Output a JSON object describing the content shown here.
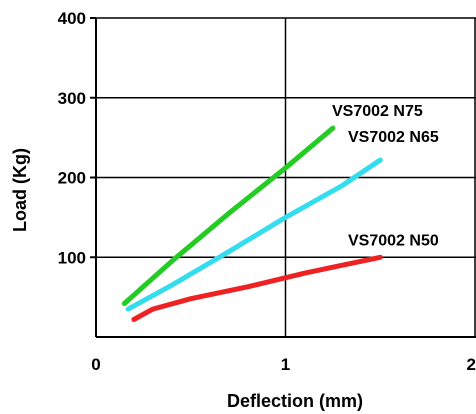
{
  "chart_data": {
    "type": "line",
    "title": "",
    "xlabel": "Deflection (mm)",
    "ylabel": "Load (Kg)",
    "xlim": [
      0,
      2
    ],
    "ylim": [
      0,
      400
    ],
    "x_ticks": [
      0,
      1,
      2
    ],
    "x_tick_labels": [
      "0",
      "1",
      "2"
    ],
    "y_ticks": [
      100,
      200,
      300,
      400
    ],
    "y_tick_labels": [
      "100",
      "200",
      "300",
      "400"
    ],
    "grid": true,
    "legend": "inline labels at line ends",
    "series": [
      {
        "name": "VS7002 N75",
        "color": "#22cc22",
        "x": [
          0.15,
          0.4,
          0.7,
          1.0,
          1.25
        ],
        "y": [
          42,
          95,
          155,
          212,
          262
        ]
      },
      {
        "name": "VS7002 N65",
        "color": "#33ddee",
        "x": [
          0.17,
          0.4,
          0.7,
          1.0,
          1.3,
          1.5
        ],
        "y": [
          35,
          65,
          107,
          150,
          190,
          222
        ]
      },
      {
        "name": "VS7002 N50",
        "color": "#ee2222",
        "x": [
          0.2,
          0.3,
          0.5,
          0.8,
          1.1,
          1.3,
          1.5
        ],
        "y": [
          22,
          35,
          48,
          63,
          80,
          90,
          100
        ]
      }
    ]
  }
}
